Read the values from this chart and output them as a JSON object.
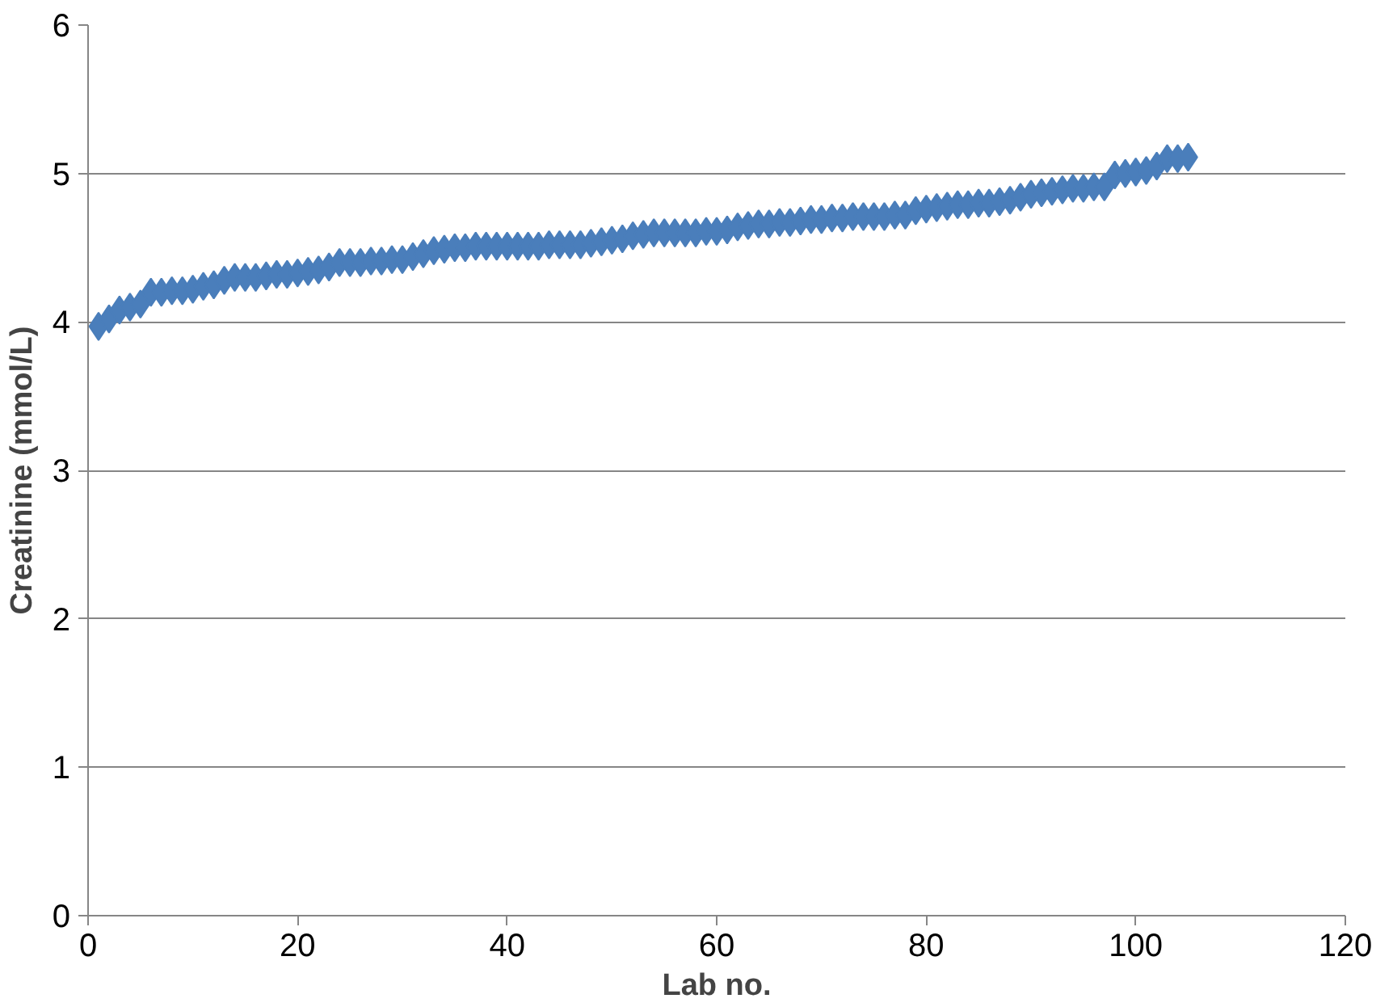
{
  "chart_data": {
    "type": "scatter",
    "xlabel": "Lab no.",
    "ylabel": "Creatinine (mmol/L)",
    "x": [
      1,
      2,
      3,
      4,
      5,
      6,
      7,
      8,
      9,
      10,
      11,
      12,
      13,
      14,
      15,
      16,
      17,
      18,
      19,
      20,
      21,
      22,
      23,
      24,
      25,
      26,
      27,
      28,
      29,
      30,
      31,
      32,
      33,
      34,
      35,
      36,
      37,
      38,
      39,
      40,
      41,
      42,
      43,
      44,
      45,
      46,
      47,
      48,
      49,
      50,
      51,
      52,
      53,
      54,
      55,
      56,
      57,
      58,
      59,
      60,
      61,
      62,
      63,
      64,
      65,
      66,
      67,
      68,
      69,
      70,
      71,
      72,
      73,
      74,
      75,
      76,
      77,
      78,
      79,
      80,
      81,
      82,
      83,
      84,
      85,
      86,
      87,
      88,
      89,
      90,
      91,
      92,
      93,
      94,
      95,
      96,
      97,
      98,
      99,
      100,
      101,
      102,
      103,
      104,
      105
    ],
    "series": [
      {
        "color": "#4a7ebb",
        "values": [
          3.97,
          4.02,
          4.08,
          4.1,
          4.12,
          4.2,
          4.2,
          4.21,
          4.21,
          4.22,
          4.24,
          4.25,
          4.28,
          4.3,
          4.3,
          4.3,
          4.31,
          4.32,
          4.32,
          4.33,
          4.34,
          4.35,
          4.37,
          4.4,
          4.4,
          4.4,
          4.41,
          4.41,
          4.42,
          4.42,
          4.44,
          4.46,
          4.48,
          4.49,
          4.5,
          4.5,
          4.51,
          4.51,
          4.51,
          4.51,
          4.51,
          4.51,
          4.51,
          4.52,
          4.52,
          4.52,
          4.52,
          4.53,
          4.54,
          4.55,
          4.56,
          4.58,
          4.59,
          4.6,
          4.6,
          4.6,
          4.6,
          4.6,
          4.61,
          4.61,
          4.62,
          4.64,
          4.65,
          4.66,
          4.66,
          4.67,
          4.67,
          4.68,
          4.69,
          4.69,
          4.7,
          4.7,
          4.71,
          4.71,
          4.71,
          4.71,
          4.72,
          4.72,
          4.75,
          4.76,
          4.77,
          4.78,
          4.79,
          4.79,
          4.8,
          4.8,
          4.81,
          4.82,
          4.84,
          4.86,
          4.87,
          4.88,
          4.89,
          4.9,
          4.9,
          4.91,
          4.91,
          4.99,
          5.0,
          5.01,
          5.02,
          5.05,
          5.1,
          5.1,
          5.11
        ]
      }
    ],
    "xlim": [
      0,
      120
    ],
    "xticks": [
      0,
      20,
      40,
      60,
      80,
      100,
      120
    ],
    "ylim": [
      0,
      6
    ],
    "yticks": [
      0,
      1,
      2,
      3,
      4,
      5,
      6
    ],
    "grid": "y",
    "marker": "diamond"
  }
}
